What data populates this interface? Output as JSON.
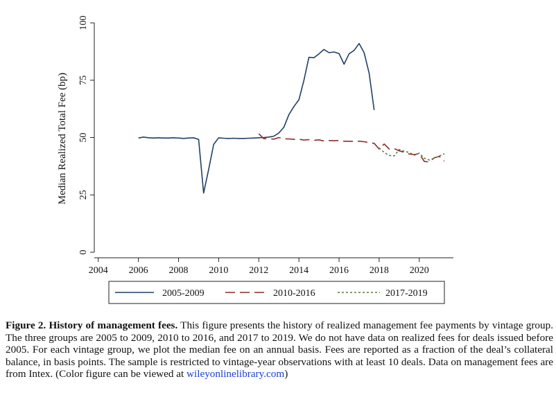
{
  "chart_data": {
    "type": "line",
    "ylabel": "Median Realized Total Fee (bp)",
    "xlabel": "",
    "xlim": [
      2003.8,
      2021.7
    ],
    "ylim": [
      0,
      100
    ],
    "x_ticks": [
      2004,
      2006,
      2008,
      2010,
      2012,
      2014,
      2016,
      2018,
      2020
    ],
    "y_ticks": [
      0,
      25,
      50,
      75,
      100
    ],
    "grid": false,
    "legend_position": "bottom",
    "series": [
      {
        "name": "2005-2009",
        "color": "#1f3f66",
        "style": "solid",
        "x": [
          2006.0,
          2006.25,
          2006.5,
          2006.75,
          2007.0,
          2007.25,
          2007.5,
          2007.75,
          2008.0,
          2008.25,
          2008.5,
          2008.75,
          2009.0,
          2009.25,
          2009.5,
          2009.75,
          2010.0,
          2010.25,
          2010.5,
          2010.75,
          2011.0,
          2011.25,
          2011.5,
          2011.75,
          2012.0,
          2012.25,
          2012.5,
          2012.75,
          2013.0,
          2013.25,
          2013.5,
          2013.75,
          2014.0,
          2014.25,
          2014.5,
          2014.75,
          2015.0,
          2015.25,
          2015.5,
          2015.75,
          2016.0,
          2016.25,
          2016.5,
          2016.75,
          2017.0,
          2017.25,
          2017.5,
          2017.75
        ],
        "y": [
          49.8,
          50.2,
          49.9,
          49.8,
          49.9,
          49.8,
          49.8,
          49.9,
          49.8,
          49.6,
          49.8,
          49.9,
          49.2,
          25.8,
          36.0,
          47.0,
          49.9,
          49.7,
          49.6,
          49.7,
          49.6,
          49.6,
          49.7,
          49.8,
          49.9,
          50.0,
          50.2,
          50.6,
          52.0,
          54.5,
          60.0,
          63.5,
          66.5,
          75.0,
          85.0,
          84.8,
          86.5,
          88.4,
          87.0,
          87.3,
          86.6,
          82.0,
          86.5,
          88.0,
          91.0,
          87.0,
          78.0,
          62.0
        ]
      },
      {
        "name": "2010-2016",
        "color": "#8b2a2a",
        "style": "dashed",
        "x": [
          2012.0,
          2012.25,
          2012.5,
          2012.75,
          2013.0,
          2013.25,
          2013.5,
          2013.75,
          2014.0,
          2014.25,
          2014.5,
          2014.75,
          2015.0,
          2015.25,
          2015.5,
          2015.75,
          2016.0,
          2016.25,
          2016.5,
          2016.75,
          2017.0,
          2017.25,
          2017.5,
          2017.75,
          2018.0,
          2018.25,
          2018.5,
          2018.75,
          2019.0,
          2019.25,
          2019.5,
          2019.75,
          2020.0,
          2020.25,
          2020.5,
          2020.75,
          2021.0,
          2021.25
        ],
        "y": [
          51.7,
          49.5,
          49.6,
          49.3,
          50.0,
          49.5,
          49.4,
          49.2,
          49.3,
          48.9,
          49.1,
          48.8,
          49.0,
          48.5,
          48.7,
          48.6,
          48.7,
          48.4,
          48.4,
          48.3,
          48.4,
          48.2,
          47.8,
          47.5,
          45.0,
          47.2,
          45.0,
          45.2,
          44.2,
          43.6,
          42.8,
          42.6,
          43.0,
          39.6,
          39.3,
          41.2,
          41.8,
          39.7
        ]
      },
      {
        "name": "2017-2019",
        "color": "#5a7a3a",
        "style": "dotted",
        "x": [
          2018.0,
          2018.25,
          2018.5,
          2018.75,
          2019.0,
          2019.25,
          2019.5,
          2019.75,
          2020.0,
          2020.25,
          2020.5,
          2020.75,
          2021.0,
          2021.25
        ],
        "y": [
          45.5,
          43.5,
          42.2,
          42.0,
          44.8,
          44.0,
          43.5,
          42.3,
          43.2,
          41.0,
          40.2,
          41.0,
          42.0,
          43.0
        ]
      }
    ]
  },
  "caption": {
    "label": "Figure 2.  History of management fees.",
    "body": " This figure presents the history of realized management fee payments by vintage group. The three groups are 2005 to 2009, 2010 to 2016, and 2017 to 2019. We do not have data on realized fees for deals issued before 2005. For each vintage group, we plot the median fee on an annual basis. Fees are reported as a fraction of the deal’s collateral balance, in basis points. The sample is restricted to vintage-year observations with at least 10 deals. Data on management fees are from Intex. (Color figure can be viewed at ",
    "link": "wileyonlinelibrary.com",
    "end": ")"
  }
}
